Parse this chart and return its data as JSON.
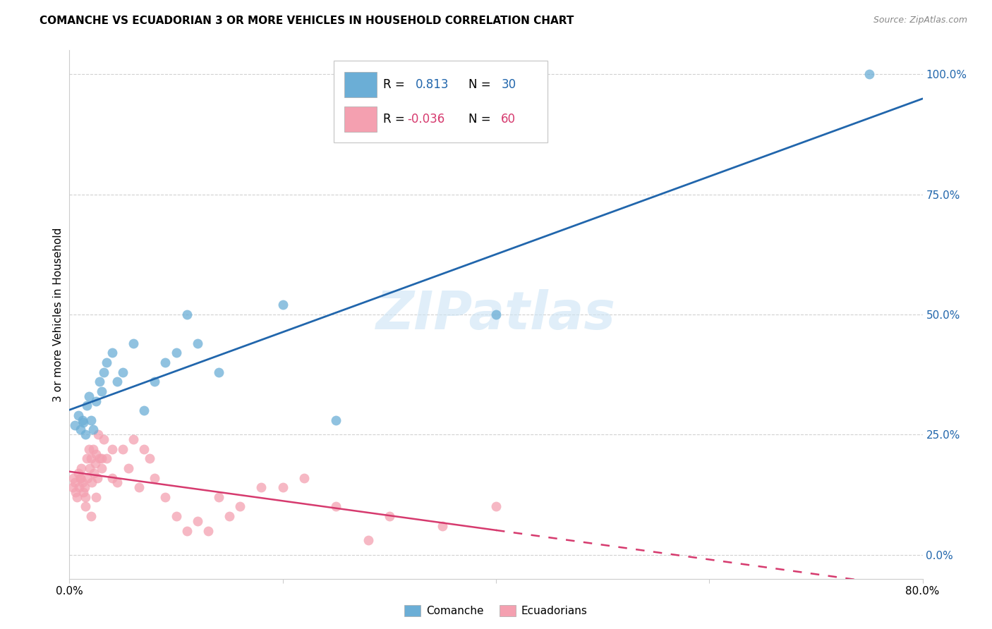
{
  "title": "COMANCHE VS ECUADORIAN 3 OR MORE VEHICLES IN HOUSEHOLD CORRELATION CHART",
  "source": "Source: ZipAtlas.com",
  "ylabel": "3 or more Vehicles in Household",
  "xlim": [
    0.0,
    80.0
  ],
  "ylim": [
    -5.0,
    105.0
  ],
  "yticks": [
    0.0,
    25.0,
    50.0,
    75.0,
    100.0
  ],
  "watermark": "ZIPatlas",
  "blue_color": "#6baed6",
  "blue_line_color": "#2166ac",
  "pink_color": "#f4a0b0",
  "pink_line_color": "#d63a6e",
  "background_color": "#ffffff",
  "grid_color": "#cccccc",
  "comanche_x": [
    0.5,
    0.8,
    1.0,
    1.2,
    1.3,
    1.5,
    1.6,
    1.8,
    2.0,
    2.2,
    2.5,
    2.8,
    3.0,
    3.2,
    3.5,
    4.0,
    4.5,
    5.0,
    6.0,
    7.0,
    8.0,
    9.0,
    10.0,
    11.0,
    12.0,
    14.0,
    20.0,
    25.0,
    40.0,
    75.0
  ],
  "comanche_y": [
    27.0,
    29.0,
    26.0,
    28.0,
    27.5,
    25.0,
    31.0,
    33.0,
    28.0,
    26.0,
    32.0,
    36.0,
    34.0,
    38.0,
    40.0,
    42.0,
    36.0,
    38.0,
    44.0,
    30.0,
    36.0,
    40.0,
    42.0,
    50.0,
    44.0,
    38.0,
    52.0,
    28.0,
    50.0,
    100.0
  ],
  "ecuadorian_x": [
    0.3,
    0.4,
    0.5,
    0.6,
    0.7,
    0.8,
    0.9,
    1.0,
    1.1,
    1.2,
    1.3,
    1.4,
    1.5,
    1.6,
    1.7,
    1.8,
    1.9,
    2.0,
    2.1,
    2.2,
    2.3,
    2.4,
    2.5,
    2.6,
    2.7,
    2.8,
    3.0,
    3.2,
    3.5,
    4.0,
    4.5,
    5.0,
    5.5,
    6.0,
    6.5,
    7.0,
    7.5,
    8.0,
    9.0,
    10.0,
    11.0,
    12.0,
    13.0,
    14.0,
    15.0,
    16.0,
    18.0,
    20.0,
    22.0,
    25.0,
    28.0,
    30.0,
    35.0,
    40.0,
    1.0,
    1.5,
    2.0,
    2.5,
    3.0,
    4.0
  ],
  "ecuadorian_y": [
    14.0,
    16.0,
    15.0,
    13.0,
    12.0,
    17.0,
    14.0,
    16.0,
    18.0,
    15.0,
    13.0,
    14.0,
    12.0,
    20.0,
    16.0,
    22.0,
    18.0,
    20.0,
    15.0,
    22.0,
    17.0,
    19.0,
    21.0,
    16.0,
    25.0,
    20.0,
    18.0,
    24.0,
    20.0,
    22.0,
    15.0,
    22.0,
    18.0,
    24.0,
    14.0,
    22.0,
    20.0,
    16.0,
    12.0,
    8.0,
    5.0,
    7.0,
    5.0,
    12.0,
    8.0,
    10.0,
    14.0,
    14.0,
    16.0,
    10.0,
    3.0,
    8.0,
    6.0,
    10.0,
    16.0,
    10.0,
    8.0,
    12.0,
    20.0,
    16.0
  ]
}
